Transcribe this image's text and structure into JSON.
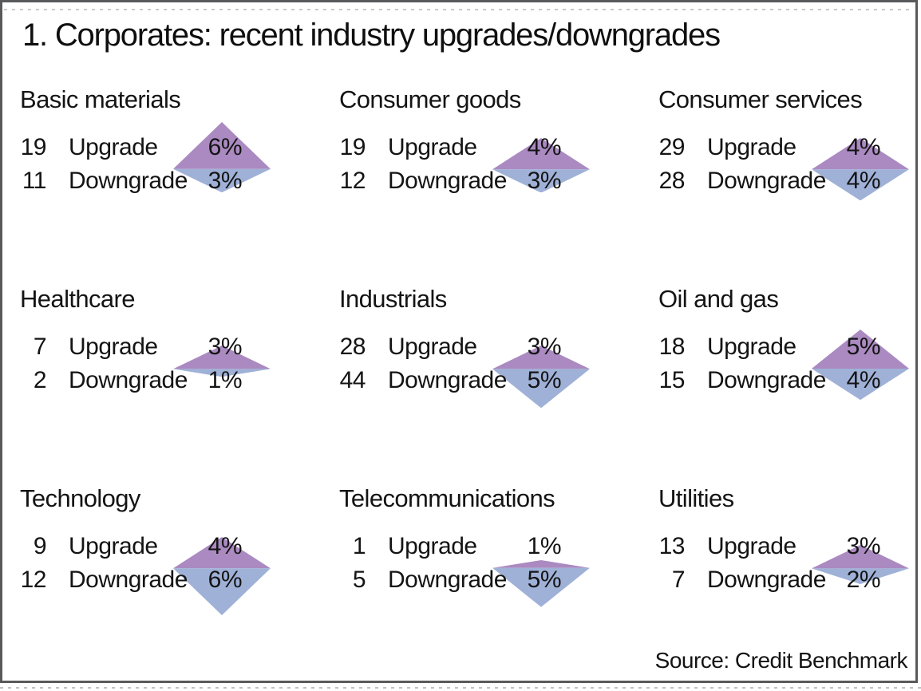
{
  "title": "1. Corporates: recent industry upgrades/downgrades",
  "source": "Source: Credit Benchmark",
  "labels": {
    "upgrade": "Upgrade",
    "downgrade": "Downgrade"
  },
  "colors": {
    "upgrade_triangle": "#aa8ac1",
    "downgrade_triangle": "#9fb1d7",
    "frame_border": "#58595b",
    "text": "#141414"
  },
  "chart_data": {
    "type": "pictogram",
    "subtype": "paired-triangle-diamonds (top purple triangle = upgrade %, bottom blue triangle = downgrade %, height proportional to percent)",
    "unit": "%",
    "legend_position": "none",
    "layout": "3x3 grid of industry panels",
    "panels": [
      {
        "industry": "Basic materials",
        "upgrade_count": 19,
        "upgrade_pct": 6,
        "downgrade_count": 11,
        "downgrade_pct": 3
      },
      {
        "industry": "Consumer goods",
        "upgrade_count": 19,
        "upgrade_pct": 4,
        "downgrade_count": 12,
        "downgrade_pct": 3
      },
      {
        "industry": "Consumer services",
        "upgrade_count": 29,
        "upgrade_pct": 4,
        "downgrade_count": 28,
        "downgrade_pct": 4
      },
      {
        "industry": "Healthcare",
        "upgrade_count": 7,
        "upgrade_pct": 3,
        "downgrade_count": 2,
        "downgrade_pct": 1
      },
      {
        "industry": "Industrials",
        "upgrade_count": 28,
        "upgrade_pct": 3,
        "downgrade_count": 44,
        "downgrade_pct": 5
      },
      {
        "industry": "Oil and gas",
        "upgrade_count": 18,
        "upgrade_pct": 5,
        "downgrade_count": 15,
        "downgrade_pct": 4
      },
      {
        "industry": "Technology",
        "upgrade_count": 9,
        "upgrade_pct": 4,
        "downgrade_count": 12,
        "downgrade_pct": 6
      },
      {
        "industry": "Telecommunications",
        "upgrade_count": 1,
        "upgrade_pct": 1,
        "downgrade_count": 5,
        "downgrade_pct": 5
      },
      {
        "industry": "Utilities",
        "upgrade_count": 13,
        "upgrade_pct": 3,
        "downgrade_count": 7,
        "downgrade_pct": 2
      }
    ]
  }
}
